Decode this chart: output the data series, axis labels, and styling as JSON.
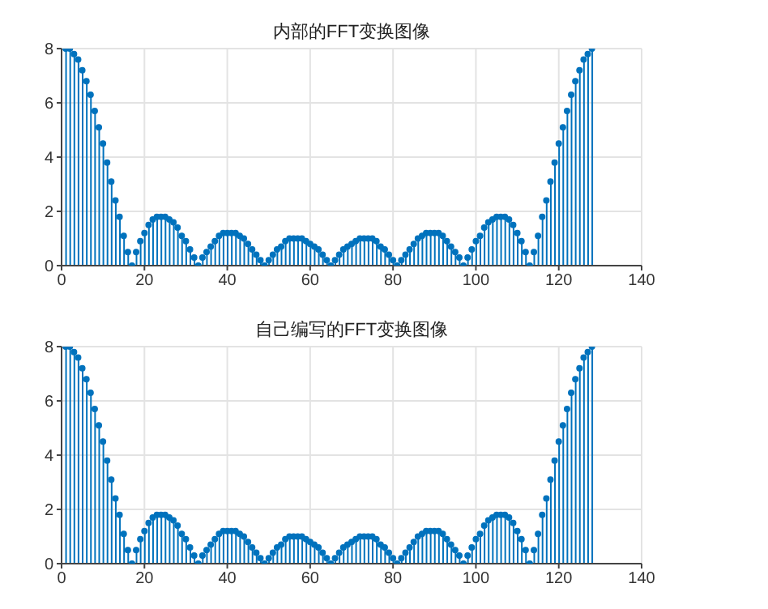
{
  "chart_data": [
    {
      "type": "lollipop",
      "title": "内部的FFT变换图像",
      "xlim": [
        0,
        140
      ],
      "xticks": [
        0,
        20,
        40,
        60,
        80,
        100,
        120,
        140
      ],
      "ylim": [
        0,
        8
      ],
      "yticks": [
        0,
        2,
        4,
        6,
        8
      ],
      "grid": true,
      "marker": "circle",
      "x": [
        1,
        2,
        3,
        4,
        5,
        6,
        7,
        8,
        9,
        10,
        11,
        12,
        13,
        14,
        15,
        16,
        17,
        18,
        19,
        20,
        21,
        22,
        23,
        24,
        25,
        26,
        27,
        28,
        29,
        30,
        31,
        32,
        33,
        34,
        35,
        36,
        37,
        38,
        39,
        40,
        41,
        42,
        43,
        44,
        45,
        46,
        47,
        48,
        49,
        50,
        51,
        52,
        53,
        54,
        55,
        56,
        57,
        58,
        59,
        60,
        61,
        62,
        63,
        64,
        65,
        66,
        67,
        68,
        69,
        70,
        71,
        72,
        73,
        74,
        75,
        76,
        77,
        78,
        79,
        80,
        81,
        82,
        83,
        84,
        85,
        86,
        87,
        88,
        89,
        90,
        91,
        92,
        93,
        94,
        95,
        96,
        97,
        98,
        99,
        100,
        101,
        102,
        103,
        104,
        105,
        106,
        107,
        108,
        109,
        110,
        111,
        112,
        113,
        114,
        115,
        116,
        117,
        118,
        119,
        120,
        121,
        122,
        123,
        124,
        125,
        126,
        127,
        128
      ],
      "series": [
        {
          "color": "#0072bd",
          "values": [
            8,
            8,
            7.8,
            7.6,
            7.2,
            6.8,
            6.3,
            5.7,
            5.1,
            4.5,
            3.8,
            3.1,
            2.4,
            1.8,
            1.1,
            0.5,
            0,
            0.5,
            0.9,
            1.2,
            1.5,
            1.7,
            1.8,
            1.8,
            1.8,
            1.7,
            1.6,
            1.4,
            1.1,
            0.9,
            0.6,
            0.3,
            0,
            0.3,
            0.5,
            0.7,
            0.9,
            1.1,
            1.2,
            1.2,
            1.2,
            1.2,
            1.1,
            1.0,
            0.8,
            0.6,
            0.4,
            0.2,
            0,
            0.2,
            0.4,
            0.6,
            0.7,
            0.9,
            1.0,
            1.0,
            1.0,
            1.0,
            0.9,
            0.8,
            0.7,
            0.6,
            0.4,
            0.2,
            0,
            0.2,
            0.4,
            0.6,
            0.7,
            0.8,
            0.9,
            1.0,
            1.0,
            1.0,
            1.0,
            0.9,
            0.7,
            0.6,
            0.4,
            0.2,
            0,
            0.2,
            0.4,
            0.6,
            0.8,
            1.0,
            1.1,
            1.2,
            1.2,
            1.2,
            1.2,
            1.1,
            0.9,
            0.7,
            0.5,
            0.3,
            0,
            0.3,
            0.6,
            0.9,
            1.1,
            1.4,
            1.6,
            1.7,
            1.8,
            1.8,
            1.8,
            1.7,
            1.5,
            1.2,
            0.9,
            0.5,
            0,
            0.5,
            1.1,
            1.8,
            2.4,
            3.1,
            3.8,
            4.5,
            5.1,
            5.7,
            6.3,
            6.8,
            7.2,
            7.6,
            7.8,
            8
          ]
        }
      ]
    },
    {
      "type": "lollipop",
      "title": "自己编写的FFT变换图像",
      "xlim": [
        0,
        140
      ],
      "xticks": [
        0,
        20,
        40,
        60,
        80,
        100,
        120,
        140
      ],
      "ylim": [
        0,
        8
      ],
      "yticks": [
        0,
        2,
        4,
        6,
        8
      ],
      "grid": true,
      "marker": "circle",
      "x": [
        1,
        2,
        3,
        4,
        5,
        6,
        7,
        8,
        9,
        10,
        11,
        12,
        13,
        14,
        15,
        16,
        17,
        18,
        19,
        20,
        21,
        22,
        23,
        24,
        25,
        26,
        27,
        28,
        29,
        30,
        31,
        32,
        33,
        34,
        35,
        36,
        37,
        38,
        39,
        40,
        41,
        42,
        43,
        44,
        45,
        46,
        47,
        48,
        49,
        50,
        51,
        52,
        53,
        54,
        55,
        56,
        57,
        58,
        59,
        60,
        61,
        62,
        63,
        64,
        65,
        66,
        67,
        68,
        69,
        70,
        71,
        72,
        73,
        74,
        75,
        76,
        77,
        78,
        79,
        80,
        81,
        82,
        83,
        84,
        85,
        86,
        87,
        88,
        89,
        90,
        91,
        92,
        93,
        94,
        95,
        96,
        97,
        98,
        99,
        100,
        101,
        102,
        103,
        104,
        105,
        106,
        107,
        108,
        109,
        110,
        111,
        112,
        113,
        114,
        115,
        116,
        117,
        118,
        119,
        120,
        121,
        122,
        123,
        124,
        125,
        126,
        127,
        128
      ],
      "series": [
        {
          "color": "#0072bd",
          "values": [
            8,
            8,
            7.8,
            7.6,
            7.2,
            6.8,
            6.3,
            5.7,
            5.1,
            4.5,
            3.8,
            3.1,
            2.4,
            1.8,
            1.1,
            0.5,
            0,
            0.5,
            0.9,
            1.2,
            1.5,
            1.7,
            1.8,
            1.8,
            1.8,
            1.7,
            1.6,
            1.4,
            1.1,
            0.9,
            0.6,
            0.3,
            0,
            0.3,
            0.5,
            0.7,
            0.9,
            1.1,
            1.2,
            1.2,
            1.2,
            1.2,
            1.1,
            1.0,
            0.8,
            0.6,
            0.4,
            0.2,
            0,
            0.2,
            0.4,
            0.6,
            0.7,
            0.9,
            1.0,
            1.0,
            1.0,
            1.0,
            0.9,
            0.8,
            0.7,
            0.6,
            0.4,
            0.2,
            0,
            0.2,
            0.4,
            0.6,
            0.7,
            0.8,
            0.9,
            1.0,
            1.0,
            1.0,
            1.0,
            0.9,
            0.7,
            0.6,
            0.4,
            0.2,
            0,
            0.2,
            0.4,
            0.6,
            0.8,
            1.0,
            1.1,
            1.2,
            1.2,
            1.2,
            1.2,
            1.1,
            0.9,
            0.7,
            0.5,
            0.3,
            0,
            0.3,
            0.6,
            0.9,
            1.1,
            1.4,
            1.6,
            1.7,
            1.8,
            1.8,
            1.8,
            1.7,
            1.5,
            1.2,
            0.9,
            0.5,
            0,
            0.5,
            1.1,
            1.8,
            2.4,
            3.1,
            3.8,
            4.5,
            5.1,
            5.7,
            6.3,
            6.8,
            7.2,
            7.6,
            7.8,
            8
          ]
        }
      ]
    }
  ]
}
